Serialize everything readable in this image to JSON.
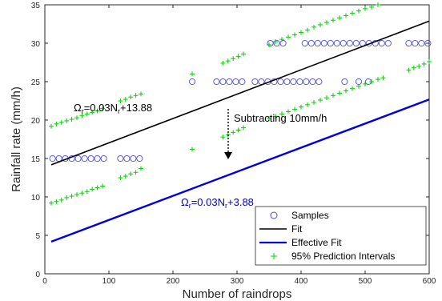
{
  "chart_data": {
    "type": "scatter",
    "title": "",
    "xlabel": "Number of raindrops",
    "ylabel": "Rainfall rate (mm/h)",
    "xlim": [
      0,
      600
    ],
    "ylim": [
      0,
      35
    ],
    "grid": false,
    "legend_position": "bottom-right",
    "x_ticks": [
      0,
      100,
      200,
      300,
      400,
      500,
      600
    ],
    "y_ticks": [
      0,
      5,
      10,
      15,
      20,
      25,
      30,
      35
    ],
    "x_tick_labels": [
      "0",
      "100",
      "200",
      "300",
      "400",
      "500",
      "600"
    ],
    "y_tick_labels": [
      "0",
      "5",
      "10",
      "15",
      "20",
      "25",
      "30",
      "35"
    ],
    "series": [
      {
        "name": "Samples",
        "kind": "scatter",
        "marker": "circle",
        "color": "#4a4ae0",
        "points": [
          [
            12,
            15
          ],
          [
            22,
            15
          ],
          [
            32,
            15
          ],
          [
            42,
            15
          ],
          [
            52,
            15
          ],
          [
            62,
            15
          ],
          [
            72,
            15
          ],
          [
            82,
            15
          ],
          [
            92,
            15
          ],
          [
            118,
            15
          ],
          [
            128,
            15
          ],
          [
            138,
            15
          ],
          [
            148,
            15
          ],
          [
            230,
            25
          ],
          [
            268,
            25
          ],
          [
            278,
            25
          ],
          [
            288,
            25
          ],
          [
            298,
            25
          ],
          [
            308,
            25
          ],
          [
            328,
            25
          ],
          [
            338,
            25
          ],
          [
            348,
            25
          ],
          [
            358,
            25
          ],
          [
            368,
            25
          ],
          [
            378,
            25
          ],
          [
            388,
            25
          ],
          [
            398,
            25
          ],
          [
            408,
            25
          ],
          [
            418,
            25
          ],
          [
            428,
            25
          ],
          [
            468,
            25
          ],
          [
            490,
            25
          ],
          [
            505,
            25
          ],
          [
            352,
            30
          ],
          [
            362,
            30
          ],
          [
            372,
            30
          ],
          [
            406,
            30
          ],
          [
            416,
            30
          ],
          [
            426,
            30
          ],
          [
            436,
            30
          ],
          [
            446,
            30
          ],
          [
            456,
            30
          ],
          [
            466,
            30
          ],
          [
            476,
            30
          ],
          [
            486,
            30
          ],
          [
            496,
            30
          ],
          [
            506,
            30
          ],
          [
            516,
            30
          ],
          [
            526,
            30
          ],
          [
            536,
            30
          ],
          [
            568,
            30
          ],
          [
            578,
            30
          ],
          [
            588,
            30
          ],
          [
            598,
            30
          ]
        ]
      },
      {
        "name": "Fit",
        "kind": "line",
        "color": "#000000",
        "x": [
          10,
          600
        ],
        "y": [
          14.18,
          32.88
        ]
      },
      {
        "name": "Effective Fit",
        "kind": "line",
        "color": "#0000e0",
        "x": [
          10,
          600
        ],
        "y": [
          4.18,
          22.68
        ]
      },
      {
        "name": "95% Prediction Intervals",
        "kind": "scatter",
        "marker": "plus",
        "color": "#00d000",
        "upper": {
          "x": [
            10,
            18,
            26,
            34,
            42,
            50,
            58,
            66,
            74,
            82,
            90,
            118,
            126,
            134,
            142,
            150,
            230,
            278,
            286,
            294,
            302,
            310,
            350,
            360,
            370,
            380,
            390,
            400,
            410,
            420,
            430,
            440,
            450,
            460,
            470,
            480,
            490,
            500,
            510,
            520
          ],
          "y": [
            19.2,
            19.5,
            19.7,
            19.9,
            20.1,
            20.3,
            20.6,
            20.8,
            21.0,
            21.2,
            21.5,
            22.5,
            22.7,
            23.0,
            23.2,
            23.4,
            26.0,
            27.4,
            27.7,
            28.0,
            28.3,
            28.6,
            29.8,
            30.2,
            30.5,
            30.8,
            31.1,
            31.4,
            31.7,
            32.1,
            32.4,
            32.7,
            33.0,
            33.3,
            33.6,
            33.9,
            34.2,
            34.5,
            34.7,
            35.0
          ]
        },
        "lower": {
          "x": [
            10,
            18,
            26,
            34,
            42,
            50,
            58,
            66,
            74,
            82,
            90,
            118,
            126,
            134,
            142,
            150,
            230,
            278,
            286,
            294,
            302,
            310,
            350,
            360,
            370,
            380,
            390,
            400,
            410,
            420,
            430,
            440,
            450,
            460,
            470,
            480,
            490,
            500,
            510,
            520,
            528,
            568,
            576,
            584,
            592,
            600
          ],
          "y": [
            9.2,
            9.4,
            9.6,
            9.9,
            10.1,
            10.3,
            10.5,
            10.7,
            11.0,
            11.2,
            11.4,
            12.5,
            12.7,
            13.0,
            13.2,
            13.7,
            16.2,
            17.8,
            18.1,
            18.4,
            18.7,
            19.0,
            20.2,
            20.5,
            20.8,
            21.1,
            21.4,
            21.7,
            22.0,
            22.3,
            22.6,
            22.9,
            23.2,
            23.5,
            23.8,
            24.1,
            24.4,
            24.7,
            25.0,
            25.3,
            25.5,
            26.5,
            26.8,
            27.0,
            27.3,
            27.6
          ]
        }
      }
    ],
    "annotations": [
      {
        "id": "fit-equation",
        "text_main": "Ω",
        "sub1": "r",
        "text_mid": "=0.03N",
        "sub2": "r",
        "text_end": "+13.88",
        "color": "#000000"
      },
      {
        "id": "effective-equation",
        "text_main": "Ω",
        "sub1": "r",
        "text_mid": "=0.03N",
        "sub2": "r",
        "text_end": "+3.88",
        "color": "#0000c8"
      },
      {
        "id": "subtract-note",
        "text": "Subtracting 10mm/h",
        "color": "#000000"
      }
    ],
    "legend": [
      {
        "label": "Samples",
        "marker": "circle",
        "color": "#4a4ae0"
      },
      {
        "label": "Fit",
        "marker": "line",
        "color": "#000000"
      },
      {
        "label": "Effective Fit",
        "marker": "line",
        "color": "#0000e0"
      },
      {
        "label": "95% Prediction Intervals",
        "marker": "plus",
        "color": "#00d000"
      }
    ]
  }
}
